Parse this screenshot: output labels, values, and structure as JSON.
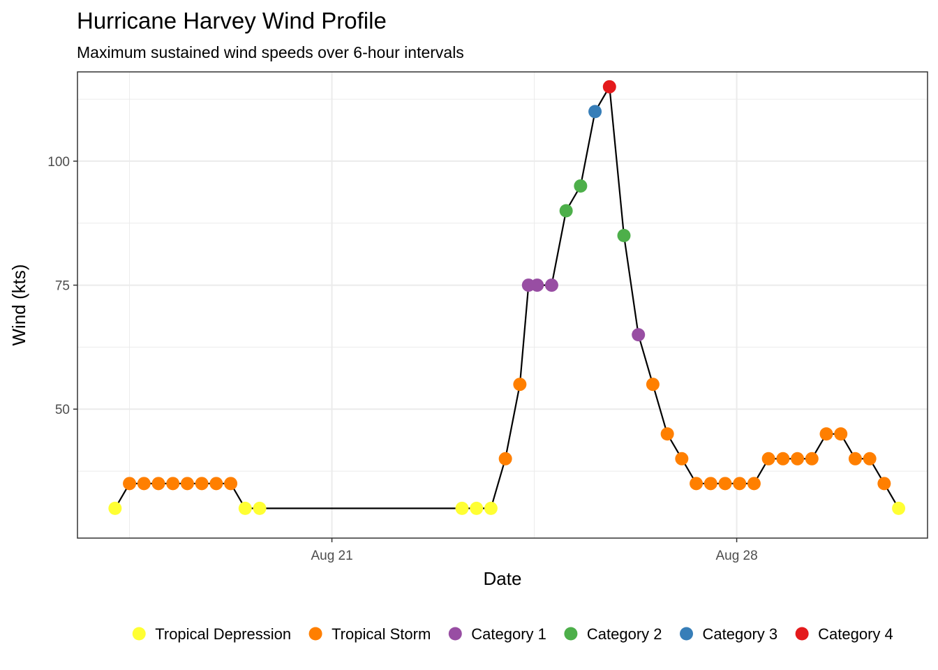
{
  "chart_data": {
    "type": "scatter",
    "title": "Hurricane Harvey Wind Profile",
    "subtitle": "Maximum sustained wind speeds over 6-hour intervals",
    "xlabel": "Date",
    "ylabel": "Wind (kts)",
    "x_unit": "days in August 2017",
    "xlim": [
      16.6,
      31.3
    ],
    "ylim": [
      24,
      118
    ],
    "x_ticks": [
      {
        "value": 21,
        "label": "Aug 21"
      },
      {
        "value": 28,
        "label": "Aug 28"
      }
    ],
    "y_ticks": [
      {
        "value": 50,
        "label": "50"
      },
      {
        "value": 75,
        "label": "75"
      },
      {
        "value": 100,
        "label": "100"
      }
    ],
    "grid": true,
    "connecting_line": true,
    "legend_position": "bottom",
    "categories": [
      "Tropical Depression",
      "Tropical Storm",
      "Category 1",
      "Category 2",
      "Category 3",
      "Category 4"
    ],
    "colors": {
      "Tropical Depression": "#ffff33",
      "Tropical Storm": "#ff7f00",
      "Category 1": "#984ea3",
      "Category 2": "#4daf4a",
      "Category 3": "#377eb8",
      "Category 4": "#e41a1c"
    },
    "points": [
      {
        "x": 17.25,
        "y": 30,
        "category": "Tropical Depression"
      },
      {
        "x": 17.5,
        "y": 35,
        "category": "Tropical Storm"
      },
      {
        "x": 17.75,
        "y": 35,
        "category": "Tropical Storm"
      },
      {
        "x": 18.0,
        "y": 35,
        "category": "Tropical Storm"
      },
      {
        "x": 18.25,
        "y": 35,
        "category": "Tropical Storm"
      },
      {
        "x": 18.5,
        "y": 35,
        "category": "Tropical Storm"
      },
      {
        "x": 18.75,
        "y": 35,
        "category": "Tropical Storm"
      },
      {
        "x": 19.0,
        "y": 35,
        "category": "Tropical Storm"
      },
      {
        "x": 19.25,
        "y": 35,
        "category": "Tropical Storm"
      },
      {
        "x": 19.5,
        "y": 30,
        "category": "Tropical Depression"
      },
      {
        "x": 19.75,
        "y": 30,
        "category": "Tropical Depression"
      },
      {
        "x": 23.25,
        "y": 30,
        "category": "Tropical Depression"
      },
      {
        "x": 23.5,
        "y": 30,
        "category": "Tropical Depression"
      },
      {
        "x": 23.75,
        "y": 30,
        "category": "Tropical Depression"
      },
      {
        "x": 24.0,
        "y": 40,
        "category": "Tropical Storm"
      },
      {
        "x": 24.25,
        "y": 55,
        "category": "Tropical Storm"
      },
      {
        "x": 24.4,
        "y": 75,
        "category": "Category 1"
      },
      {
        "x": 24.55,
        "y": 75,
        "category": "Category 1"
      },
      {
        "x": 24.8,
        "y": 75,
        "category": "Category 1"
      },
      {
        "x": 25.05,
        "y": 90,
        "category": "Category 2"
      },
      {
        "x": 25.3,
        "y": 95,
        "category": "Category 2"
      },
      {
        "x": 25.55,
        "y": 110,
        "category": "Category 3"
      },
      {
        "x": 25.8,
        "y": 115,
        "category": "Category 4"
      },
      {
        "x": 26.05,
        "y": 85,
        "category": "Category 2"
      },
      {
        "x": 26.3,
        "y": 65,
        "category": "Category 1"
      },
      {
        "x": 26.55,
        "y": 55,
        "category": "Tropical Storm"
      },
      {
        "x": 26.8,
        "y": 45,
        "category": "Tropical Storm"
      },
      {
        "x": 27.05,
        "y": 40,
        "category": "Tropical Storm"
      },
      {
        "x": 27.3,
        "y": 35,
        "category": "Tropical Storm"
      },
      {
        "x": 27.55,
        "y": 35,
        "category": "Tropical Storm"
      },
      {
        "x": 27.8,
        "y": 35,
        "category": "Tropical Storm"
      },
      {
        "x": 28.05,
        "y": 35,
        "category": "Tropical Storm"
      },
      {
        "x": 28.3,
        "y": 35,
        "category": "Tropical Storm"
      },
      {
        "x": 28.55,
        "y": 40,
        "category": "Tropical Storm"
      },
      {
        "x": 28.8,
        "y": 40,
        "category": "Tropical Storm"
      },
      {
        "x": 29.05,
        "y": 40,
        "category": "Tropical Storm"
      },
      {
        "x": 29.3,
        "y": 40,
        "category": "Tropical Storm"
      },
      {
        "x": 29.55,
        "y": 45,
        "category": "Tropical Storm"
      },
      {
        "x": 29.8,
        "y": 45,
        "category": "Tropical Storm"
      },
      {
        "x": 30.05,
        "y": 40,
        "category": "Tropical Storm"
      },
      {
        "x": 30.3,
        "y": 40,
        "category": "Tropical Storm"
      },
      {
        "x": 30.55,
        "y": 35,
        "category": "Tropical Storm"
      },
      {
        "x": 30.8,
        "y": 30,
        "category": "Tropical Depression"
      }
    ]
  }
}
